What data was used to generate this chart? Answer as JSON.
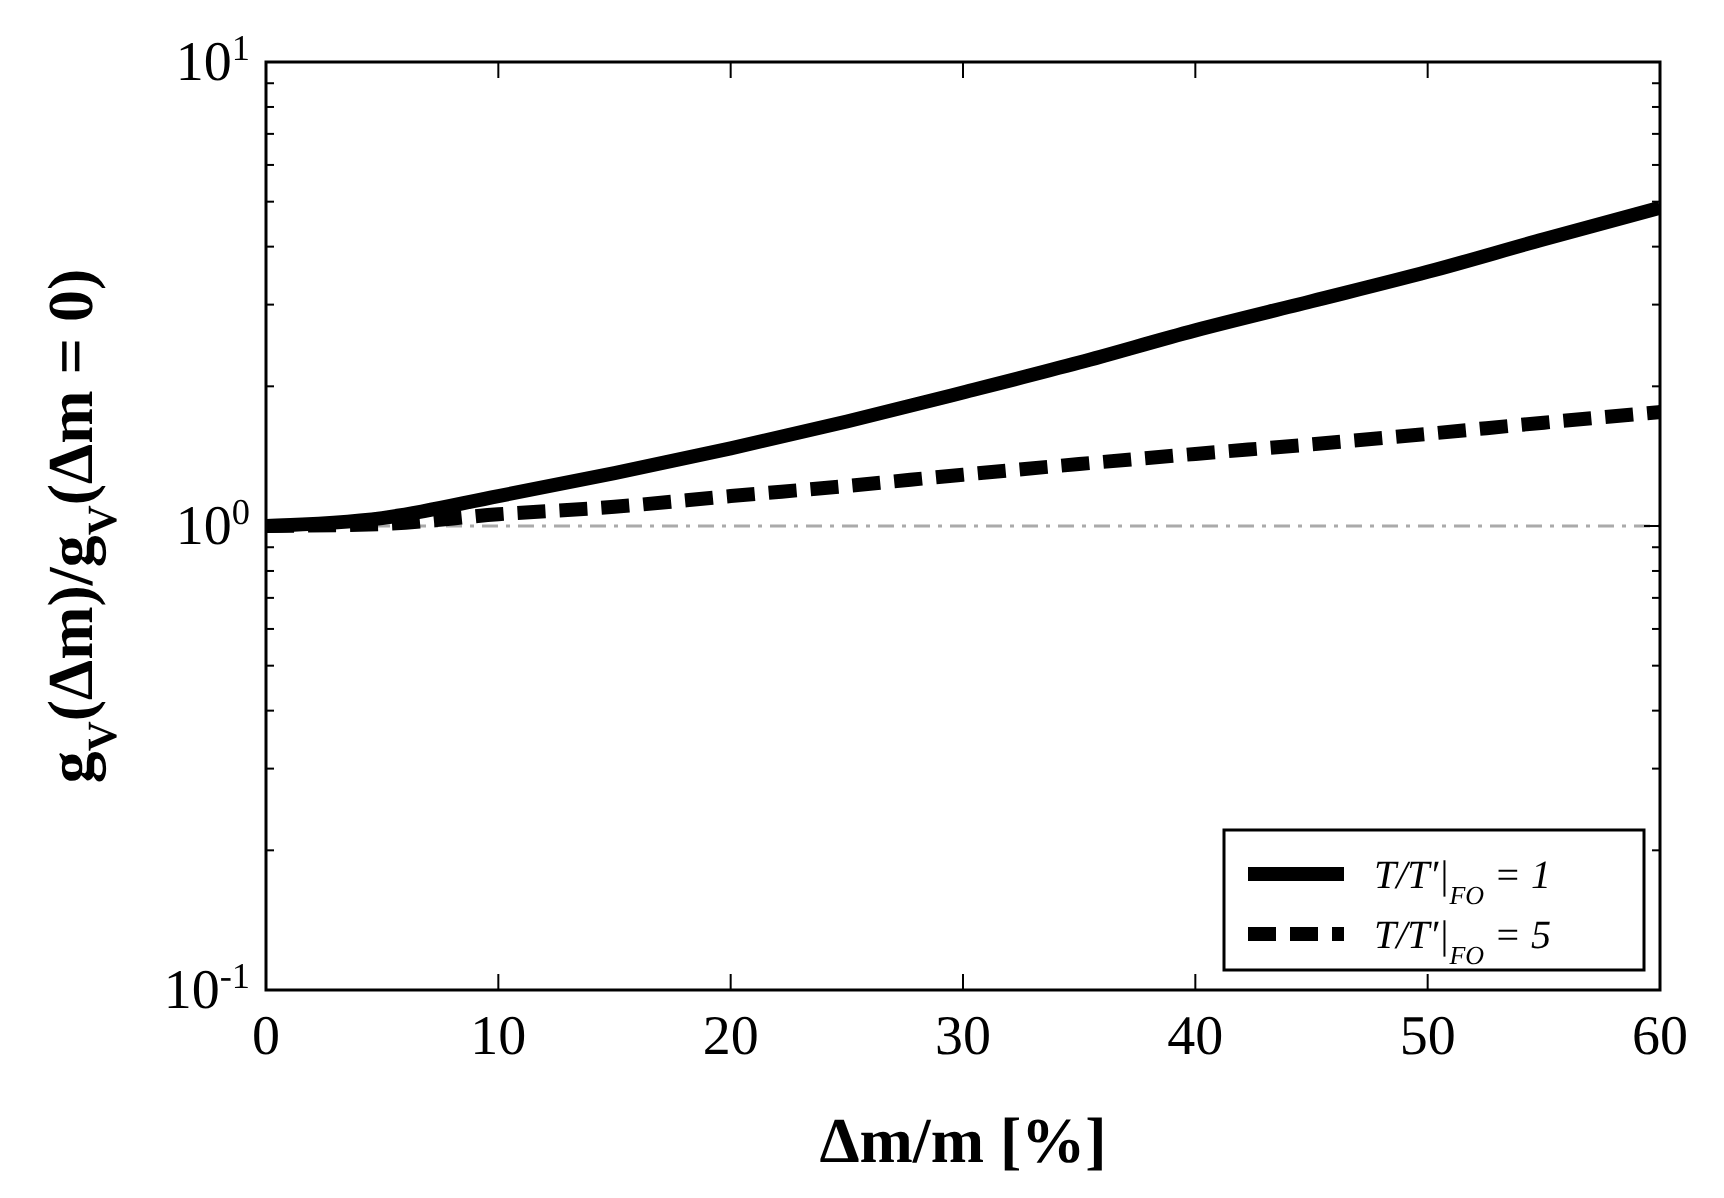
{
  "chart_data": {
    "type": "line",
    "xlabel": "Δm/m [%]",
    "ylabel": "g$_{V}$(Δm)/g$_{V}$(Δm = 0)",
    "log": "y",
    "x": [
      0,
      5,
      10,
      15,
      20,
      25,
      30,
      35,
      40,
      45,
      50,
      55,
      60
    ],
    "series": [
      {
        "name": "T/T′|$_{FO}$ = 1",
        "color": "#000000",
        "line_style": "solid",
        "values": [
          1,
          1.04,
          1.16,
          1.3,
          1.47,
          1.68,
          1.94,
          2.25,
          2.64,
          3.05,
          3.53,
          4.15,
          4.85
        ]
      },
      {
        "name": "T/T′|$_{FO}$ = 5",
        "color": "#000000",
        "line_style": "dashed",
        "values": [
          1,
          1.01,
          1.06,
          1.1,
          1.16,
          1.22,
          1.29,
          1.36,
          1.43,
          1.5,
          1.58,
          1.67,
          1.76
        ]
      }
    ],
    "xlim": [
      0,
      60
    ],
    "xticks": [
      0,
      10,
      20,
      30,
      40,
      50,
      60
    ],
    "ylim": [
      0.1,
      10
    ],
    "yticks": [
      {
        "value": 0.1,
        "label": "10$^{-1}$"
      },
      {
        "value": 0.2,
        "label": null
      },
      {
        "value": 0.3,
        "label": null
      },
      {
        "value": 0.4,
        "label": null
      },
      {
        "value": 0.5,
        "label": null
      },
      {
        "value": 0.6,
        "label": null
      },
      {
        "value": 0.7,
        "label": null
      },
      {
        "value": 0.8,
        "label": null
      },
      {
        "value": 0.9,
        "label": null
      },
      {
        "value": 1,
        "label": "10$^{0}$"
      },
      {
        "value": 2,
        "label": null
      },
      {
        "value": 3,
        "label": null
      },
      {
        "value": 4,
        "label": null
      },
      {
        "value": 5,
        "label": null
      },
      {
        "value": 6,
        "label": null
      },
      {
        "value": 7,
        "label": null
      },
      {
        "value": 8,
        "label": null
      },
      {
        "value": 9,
        "label": null
      },
      {
        "value": 10,
        "label": "10$^{1}$"
      }
    ],
    "ref_lines": [
      {
        "axis": "y",
        "value": 1,
        "color": "#aaaaaa",
        "line_style": "dashdot"
      }
    ],
    "legend": "bottom right",
    "grid": false,
    "marker": "none"
  }
}
